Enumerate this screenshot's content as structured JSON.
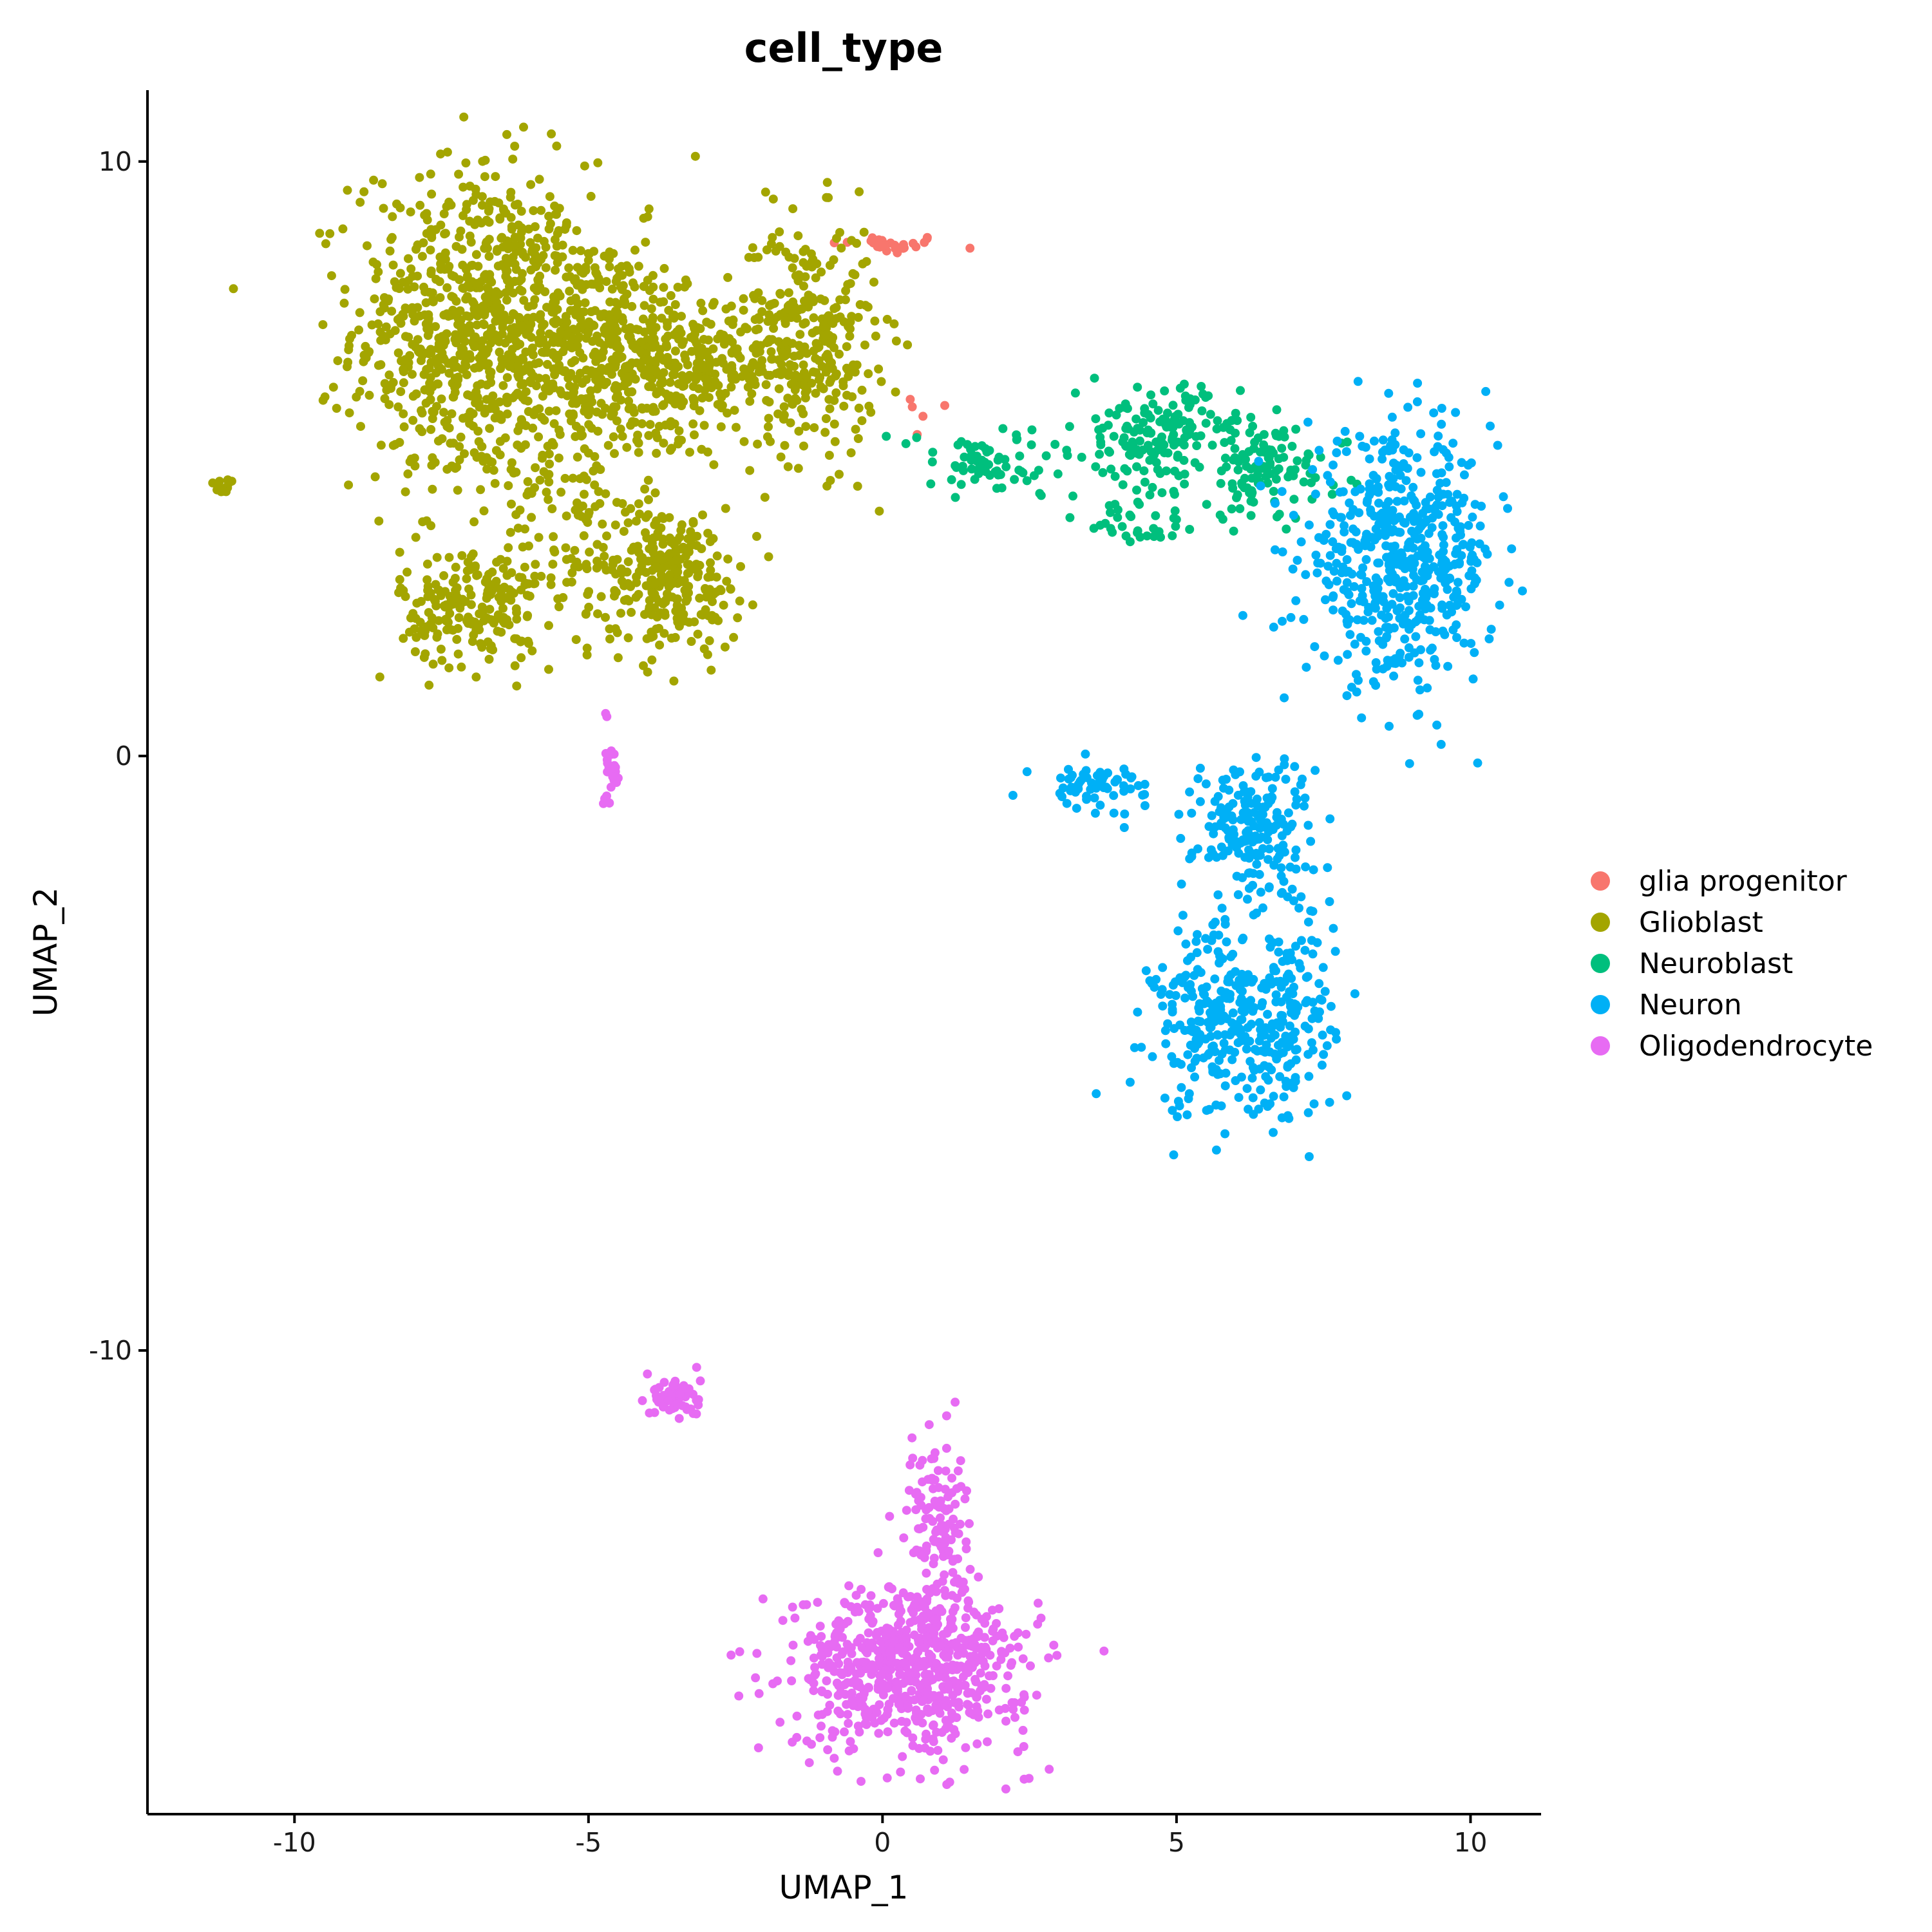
{
  "chart_data": {
    "type": "scatter",
    "title": "cell_type",
    "xlabel": "UMAP_1",
    "ylabel": "UMAP_2",
    "xlim": [
      -12.5,
      11.2
    ],
    "ylim": [
      -17.8,
      11.2
    ],
    "xticks": [
      -10,
      -5,
      0,
      5,
      10
    ],
    "yticks": [
      10,
      0,
      -10
    ],
    "grid": false,
    "legend_position": "right",
    "series": [
      {
        "name": "glia progenitor",
        "color": "#F8766D",
        "clusters": [
          {
            "cx": 0.1,
            "cy": 8.6,
            "sx": 0.5,
            "sy": 0.08,
            "n": 28
          },
          {
            "cx": 0.5,
            "cy": 5.6,
            "sx": 0.5,
            "sy": 0.3,
            "n": 5
          }
        ]
      },
      {
        "name": "Glioblast",
        "color": "#A3A500",
        "clusters": [
          {
            "cx": -7.0,
            "cy": 7.2,
            "sx": 1.0,
            "sy": 1.4,
            "n": 700
          },
          {
            "cx": -5.0,
            "cy": 7.0,
            "sx": 1.1,
            "sy": 0.9,
            "n": 450
          },
          {
            "cx": -3.5,
            "cy": 6.5,
            "sx": 0.8,
            "sy": 0.6,
            "n": 250
          },
          {
            "cx": -1.3,
            "cy": 7.0,
            "sx": 0.6,
            "sy": 1.0,
            "n": 330
          },
          {
            "cx": -7.0,
            "cy": 2.5,
            "sx": 0.6,
            "sy": 0.5,
            "n": 200
          },
          {
            "cx": -3.6,
            "cy": 3.0,
            "sx": 0.6,
            "sy": 0.6,
            "n": 260
          },
          {
            "cx": -5.3,
            "cy": 4.0,
            "sx": 0.6,
            "sy": 1.0,
            "n": 120
          },
          {
            "cx": -11.2,
            "cy": 4.5,
            "sx": 0.15,
            "sy": 0.08,
            "n": 12
          }
        ]
      },
      {
        "name": "Neuroblast",
        "color": "#00BF7D",
        "clusters": [
          {
            "cx": 1.8,
            "cy": 4.9,
            "sx": 0.8,
            "sy": 0.3,
            "n": 70
          },
          {
            "cx": 4.7,
            "cy": 5.4,
            "sx": 0.7,
            "sy": 0.4,
            "n": 160
          },
          {
            "cx": 6.5,
            "cy": 4.8,
            "sx": 0.7,
            "sy": 0.4,
            "n": 110
          },
          {
            "cx": 4.5,
            "cy": 4.0,
            "sx": 0.6,
            "sy": 0.3,
            "n": 40
          }
        ]
      },
      {
        "name": "Neuron",
        "color": "#00B0F6",
        "clusters": [
          {
            "cx": 8.8,
            "cy": 3.3,
            "sx": 0.8,
            "sy": 1.0,
            "n": 550
          },
          {
            "cx": 3.6,
            "cy": -0.5,
            "sx": 0.5,
            "sy": 0.2,
            "n": 60
          },
          {
            "cx": 6.3,
            "cy": -1.2,
            "sx": 0.5,
            "sy": 0.6,
            "n": 200
          },
          {
            "cx": 5.8,
            "cy": -4.5,
            "sx": 0.6,
            "sy": 0.8,
            "n": 280
          },
          {
            "cx": 7.0,
            "cy": -4.5,
            "sx": 0.35,
            "sy": 0.9,
            "n": 120
          }
        ]
      },
      {
        "name": "Oligodendrocyte",
        "color": "#E76BF3",
        "clusters": [
          {
            "cx": 0.5,
            "cy": -15.3,
            "sx": 1.0,
            "sy": 0.7,
            "n": 700
          },
          {
            "cx": 0.9,
            "cy": -12.8,
            "sx": 0.25,
            "sy": 0.7,
            "n": 110
          },
          {
            "cx": -3.5,
            "cy": -10.8,
            "sx": 0.2,
            "sy": 0.2,
            "n": 60
          },
          {
            "cx": -4.6,
            "cy": -0.1,
            "sx": 0.06,
            "sy": 0.35,
            "n": 25
          }
        ]
      }
    ]
  }
}
